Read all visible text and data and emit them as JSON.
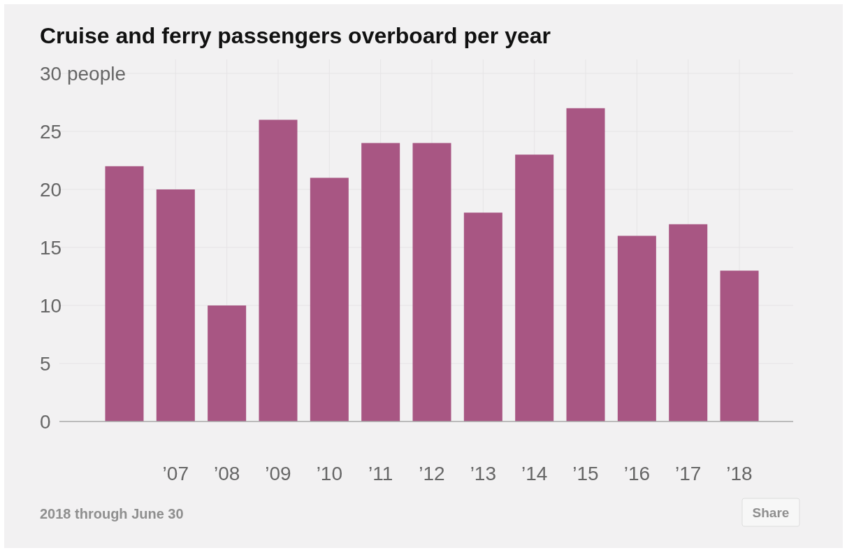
{
  "chart_data": {
    "type": "bar",
    "title": "Cruise and ferry passengers overboard per year",
    "categories": [
      null,
      "’07",
      "’08",
      "’09",
      "’10",
      "’11",
      "’12",
      "’13",
      "’14",
      "’15",
      "’16",
      "’17",
      "’18"
    ],
    "values": [
      22,
      20,
      10,
      26,
      21,
      24,
      24,
      18,
      23,
      27,
      16,
      17,
      13
    ],
    "color": "#a85683",
    "ylim": [
      0,
      30
    ],
    "yticks": [
      0,
      5,
      10,
      15,
      20,
      25,
      {
        "value": 30,
        "label": "30 people"
      }
    ],
    "grid": true,
    "annotations": [
      "2018 through June 30",
      "Share"
    ]
  }
}
